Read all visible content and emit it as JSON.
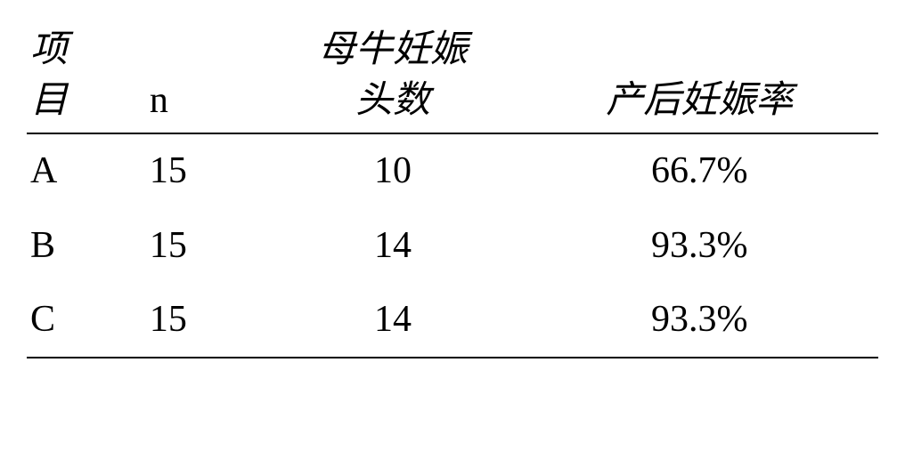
{
  "table": {
    "headers": {
      "item_line1": "项",
      "item_line2": "目",
      "n": "n",
      "pregnant_line1": "母牛妊娠",
      "pregnant_line2": "头数",
      "rate": "产后妊娠率"
    },
    "rows": [
      {
        "item": "A",
        "n": "15",
        "pregnant": "10",
        "rate": "66.7%"
      },
      {
        "item": "B",
        "n": "15",
        "pregnant": "14",
        "rate": "93.3%"
      },
      {
        "item": "C",
        "n": "15",
        "pregnant": "14",
        "rate": "93.3%"
      }
    ]
  }
}
